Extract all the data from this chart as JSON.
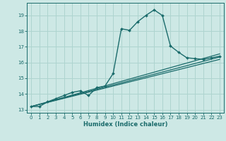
{
  "xlabel": "Humidex (Indice chaleur)",
  "bg_color": "#cde8e5",
  "line_color": "#1a6b6b",
  "grid_color": "#aed4cf",
  "xlim": [
    -0.5,
    23.5
  ],
  "ylim": [
    12.8,
    19.8
  ],
  "xticks": [
    0,
    1,
    2,
    3,
    4,
    5,
    6,
    7,
    8,
    9,
    10,
    11,
    12,
    13,
    14,
    15,
    16,
    17,
    18,
    19,
    20,
    21,
    22,
    23
  ],
  "yticks": [
    13,
    14,
    15,
    16,
    17,
    18,
    19
  ],
  "series": [
    {
      "x": [
        0,
        1,
        2,
        3,
        4,
        5,
        6,
        7,
        8,
        9,
        10,
        11,
        12,
        13,
        14,
        15,
        16,
        17,
        18,
        19,
        20,
        21,
        22,
        23
      ],
      "y": [
        13.2,
        13.2,
        13.5,
        13.7,
        13.9,
        14.1,
        14.2,
        13.9,
        14.4,
        14.5,
        15.3,
        18.15,
        18.05,
        18.6,
        19.0,
        19.35,
        19.0,
        17.05,
        16.65,
        16.3,
        16.25,
        16.2,
        16.3,
        16.4
      ],
      "with_markers": true,
      "linewidth": 1.0
    },
    {
      "x": [
        0,
        23
      ],
      "y": [
        13.2,
        16.55
      ],
      "with_markers": false,
      "linewidth": 0.9
    },
    {
      "x": [
        0,
        23
      ],
      "y": [
        13.2,
        16.35
      ],
      "with_markers": false,
      "linewidth": 0.9
    },
    {
      "x": [
        0,
        23
      ],
      "y": [
        13.2,
        16.2
      ],
      "with_markers": false,
      "linewidth": 0.9
    }
  ]
}
